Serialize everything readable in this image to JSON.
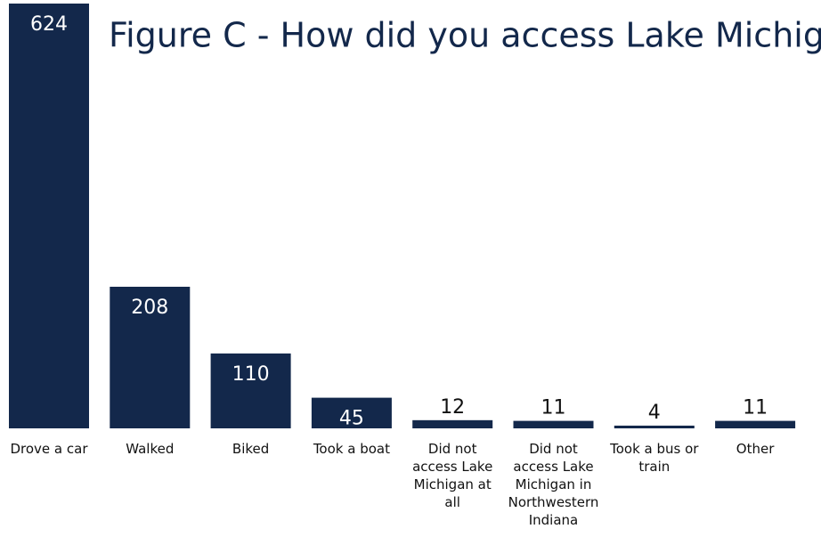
{
  "chart_data": {
    "type": "bar",
    "title": "Figure C - How did you access Lake Michigan?",
    "categories": [
      "Drove a car",
      "Walked",
      "Biked",
      "Took a boat",
      "Did not access Lake Michigan at all",
      "Did not access Lake Michigan in Northwestern Indiana",
      "Took a bus or train",
      "Other"
    ],
    "values": [
      624,
      208,
      110,
      45,
      12,
      11,
      4,
      11
    ],
    "color": "#13284b"
  }
}
